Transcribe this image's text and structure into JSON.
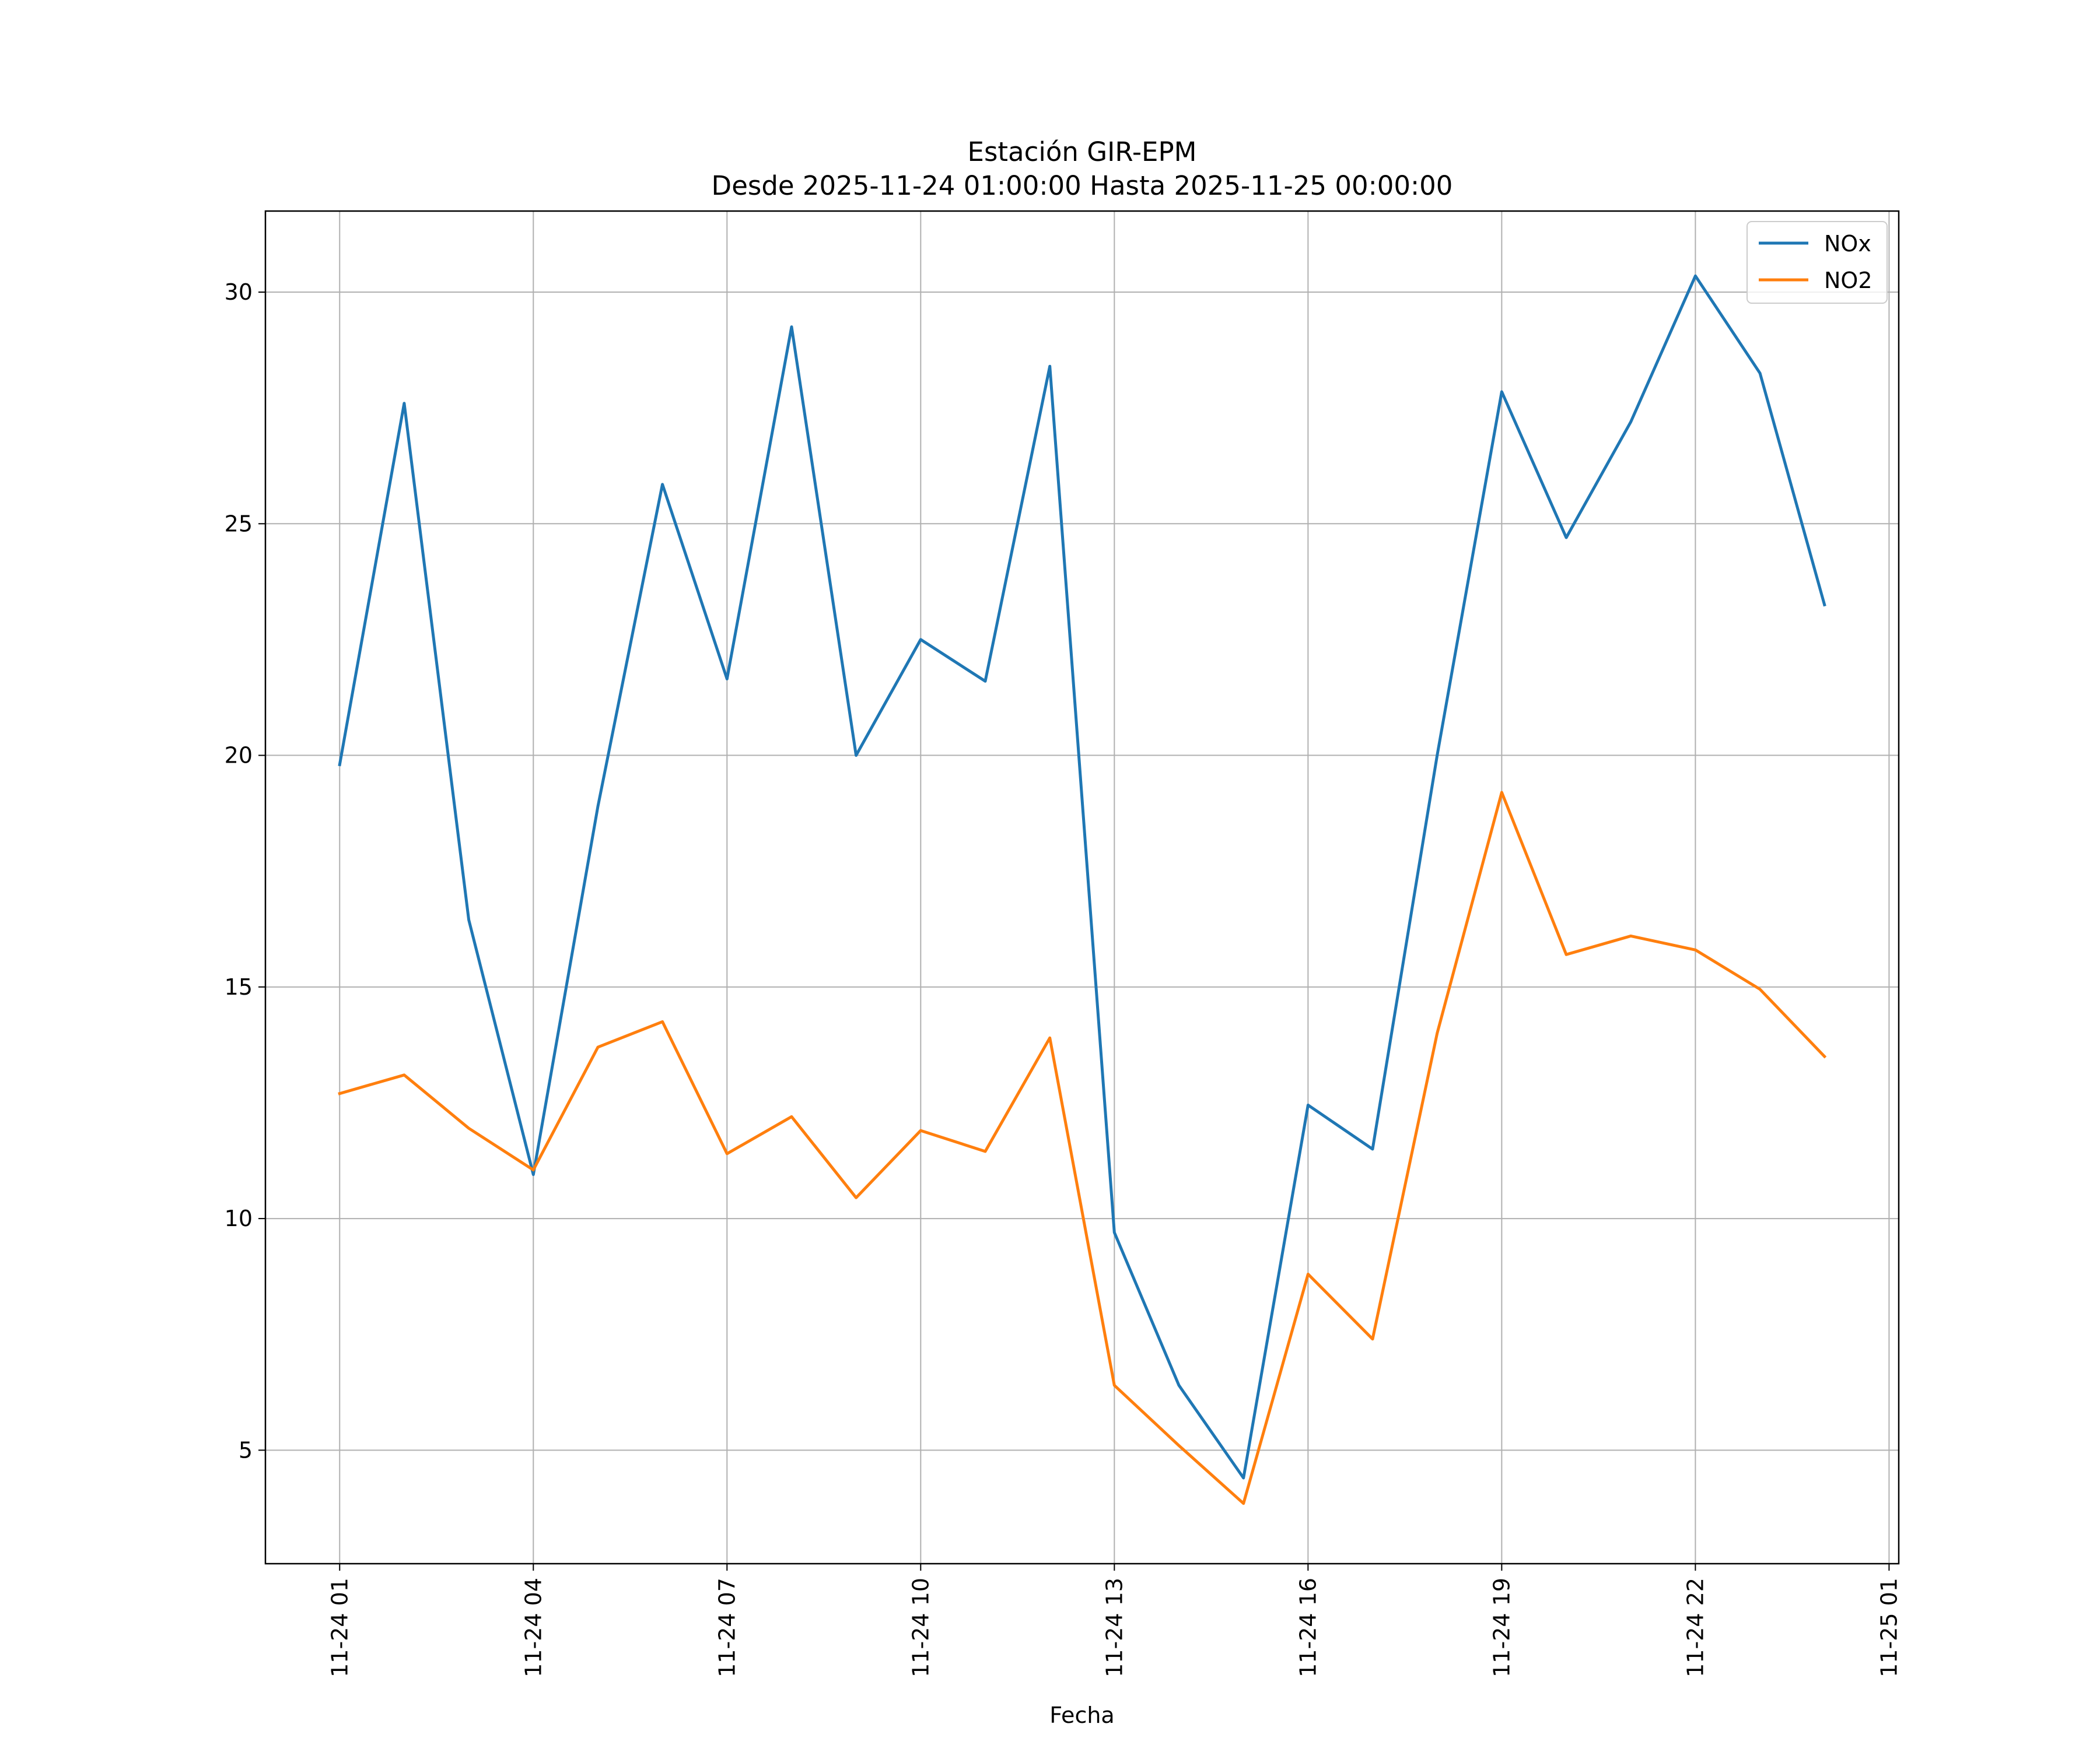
{
  "chart_data": {
    "type": "line",
    "title": "Estación GIR-EPM",
    "subtitle": "Desde 2025-11-24 01:00:00 Hasta 2025-11-25 00:00:00",
    "xlabel": "Fecha",
    "ylabel": "",
    "x": [
      "11-24 01",
      "11-24 02",
      "11-24 03",
      "11-24 04",
      "11-24 05",
      "11-24 06",
      "11-24 07",
      "11-24 08",
      "11-24 09",
      "11-24 10",
      "11-24 11",
      "11-24 12",
      "11-24 13",
      "11-24 14",
      "11-24 15",
      "11-24 16",
      "11-24 17",
      "11-24 18",
      "11-24 19",
      "11-24 20",
      "11-24 21",
      "11-24 22",
      "11-24 23",
      "11-25 00"
    ],
    "x_hours": [
      0,
      1,
      2,
      3,
      4,
      5,
      6,
      7,
      8,
      9,
      10,
      11,
      12,
      13,
      14,
      15,
      16,
      17,
      18,
      19,
      20,
      21,
      22,
      23
    ],
    "xlim": [
      -1.15,
      24.15
    ],
    "x_ticks": [
      0,
      3,
      6,
      9,
      12,
      15,
      18,
      21,
      24
    ],
    "x_tick_labels": [
      "11-24 01",
      "11-24 04",
      "11-24 07",
      "11-24 10",
      "11-24 13",
      "11-24 16",
      "11-24 19",
      "11-24 22",
      "11-25 01"
    ],
    "ylim": [
      2.55,
      31.75
    ],
    "y_ticks": [
      5,
      10,
      15,
      20,
      25,
      30
    ],
    "y_tick_labels": [
      "5",
      "10",
      "15",
      "20",
      "25",
      "30"
    ],
    "grid": true,
    "legend_position": "top-right",
    "series": [
      {
        "name": "NOx",
        "color": "#1f77b4",
        "values": [
          19.8,
          27.6,
          16.45,
          10.95,
          18.9,
          25.85,
          21.65,
          29.25,
          20.0,
          22.5,
          21.6,
          28.4,
          9.7,
          6.4,
          4.4,
          12.45,
          11.5,
          20.0,
          27.85,
          24.7,
          27.2,
          30.35,
          28.25,
          23.25
        ]
      },
      {
        "name": "NO2",
        "color": "#ff7f0e",
        "values": [
          12.7,
          13.1,
          11.95,
          11.05,
          13.7,
          14.25,
          11.4,
          12.2,
          10.45,
          11.9,
          11.45,
          13.9,
          6.4,
          5.1,
          3.85,
          8.8,
          7.4,
          14.0,
          19.2,
          15.7,
          16.1,
          15.8,
          14.95,
          13.5
        ]
      }
    ]
  }
}
